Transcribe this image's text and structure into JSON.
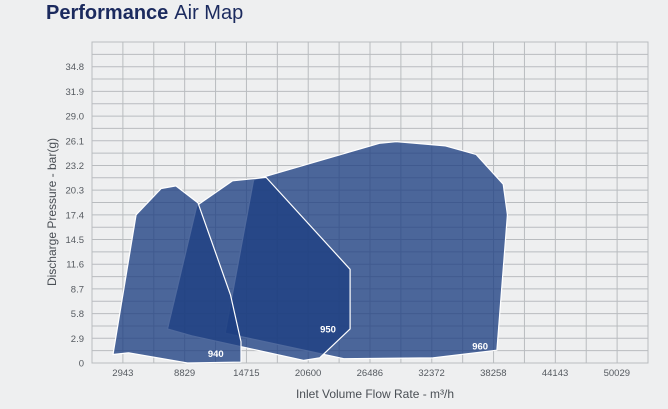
{
  "title": {
    "bold": "Performance",
    "light": "Air Map"
  },
  "chart_data": {
    "type": "area",
    "title": "Performance Air Map",
    "xlabel": "Inlet Volume Flow Rate - m³/h",
    "ylabel": "Discharge Pressure - bar(g)",
    "x_ticks": [
      "2943",
      "8829",
      "14715",
      "20600",
      "26486",
      "32372",
      "38258",
      "44143",
      "50029"
    ],
    "y_ticks": [
      "0",
      "2.9",
      "5.8",
      "8.7",
      "11.6",
      "14.5",
      "17.4",
      "20.3",
      "23.2",
      "26.1",
      "29.0",
      "31.9",
      "34.8"
    ],
    "xlim": [
      0,
      53000
    ],
    "ylim": [
      0,
      37.7
    ],
    "grid": true,
    "colors": {
      "fill": "#1e3f82",
      "edge": "#ffffff",
      "grid": "#b9bcbf",
      "plot_bg": "#eeeff0"
    },
    "series": [
      {
        "name": "960",
        "x": [
          12700,
          15400,
          27400,
          29000,
          33700,
          36600,
          39200,
          39600,
          38600,
          32500,
          24000,
          12700
        ],
        "y": [
          3.5,
          21.5,
          25.8,
          26.0,
          25.5,
          24.5,
          21.0,
          17.4,
          1.5,
          0.6,
          0.5,
          3.5
        ]
      },
      {
        "name": "950",
        "x": [
          7200,
          10000,
          13400,
          16600,
          24600,
          24600,
          21700,
          20200,
          9500,
          7200
        ],
        "y": [
          4.0,
          18.5,
          21.4,
          21.8,
          11.0,
          4.0,
          0.6,
          0.3,
          3.2,
          4.0
        ]
      },
      {
        "name": "940",
        "x": [
          2000,
          4200,
          6600,
          8000,
          10100,
          13200,
          14200,
          14200,
          9100,
          3500,
          2000
        ],
        "y": [
          1.0,
          17.4,
          20.5,
          20.8,
          18.8,
          8.0,
          2.5,
          0.1,
          0.0,
          1.2,
          1.0
        ]
      }
    ]
  }
}
